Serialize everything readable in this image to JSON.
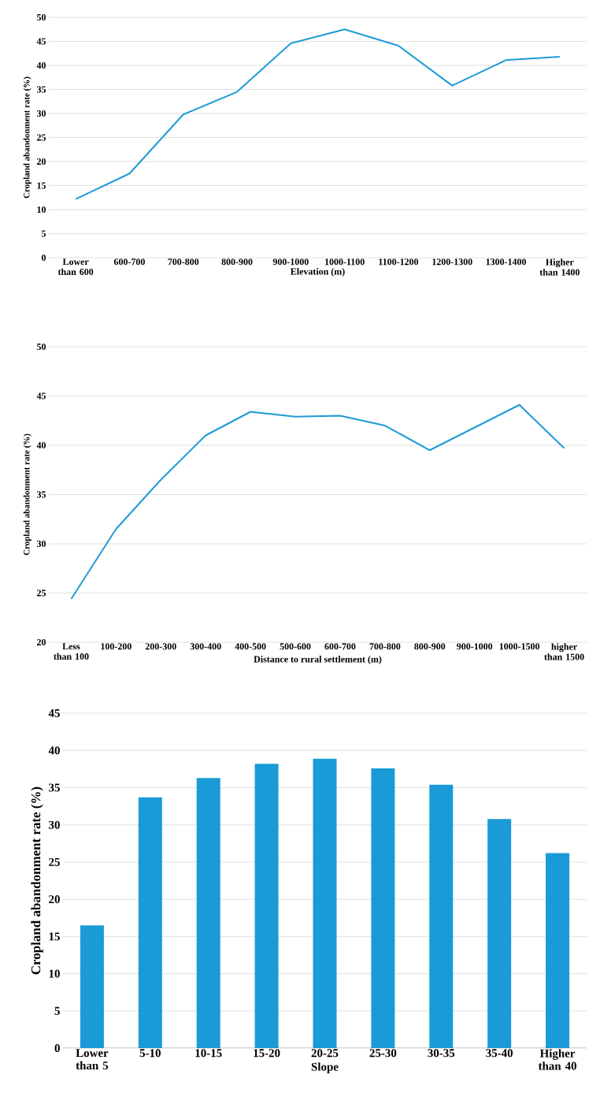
{
  "chart_data": [
    {
      "type": "line",
      "xlabel": "Elevation (m)",
      "ylabel": "Cropland abandonment rate (%)",
      "categories": [
        "Lower than 600",
        "600-700",
        "700-800",
        "800-900",
        "900-1000",
        "1000-1100",
        "1100-1200",
        "1200-1300",
        "1300-1400",
        "Higher than 1400"
      ],
      "values": [
        12.2,
        17.5,
        29.8,
        34.5,
        44.6,
        47.5,
        44.1,
        35.8,
        41.1,
        41.8
      ],
      "color": "#1f9bd7",
      "ylim": [
        0,
        50
      ],
      "yticks": [
        0,
        5,
        10,
        15,
        20,
        25,
        30,
        35,
        40,
        45,
        50
      ],
      "grid": "y"
    },
    {
      "type": "line",
      "xlabel": "Distance to rural settlement (m)",
      "ylabel": "Cropland abandonment rate (%)",
      "categories": [
        "Less than 100",
        "100-200",
        "200-300",
        "300-400",
        "400-500",
        "500-600",
        "600-700",
        "700-800",
        "800-900",
        "900-1000",
        "1000-1500",
        "higher than 1500"
      ],
      "values": [
        24.4,
        31.5,
        36.5,
        41.0,
        43.4,
        42.9,
        43.0,
        42.0,
        39.5,
        41.8,
        44.1,
        39.7
      ],
      "color": "#1f9bd7",
      "ylim": [
        20,
        50
      ],
      "yticks": [
        20,
        25,
        30,
        35,
        40,
        45,
        50
      ],
      "grid": "y"
    },
    {
      "type": "bar",
      "xlabel": "Slope",
      "ylabel": "Cropland abandonment rate (%)",
      "categories": [
        "Lower than 5",
        "5-10",
        "10-15",
        "15-20",
        "20-25",
        "25-30",
        "30-35",
        "35-40",
        "Higher than 40"
      ],
      "values": [
        16.5,
        33.7,
        36.3,
        38.2,
        38.9,
        37.6,
        35.4,
        30.8,
        26.2
      ],
      "color": "#1a9bd7",
      "ylim": [
        0,
        45
      ],
      "yticks": [
        0,
        5,
        10,
        15,
        20,
        25,
        30,
        35,
        40,
        45
      ],
      "grid": "y"
    }
  ]
}
